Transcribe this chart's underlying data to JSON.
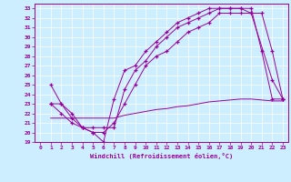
{
  "background_color": "#cceeff",
  "line_color": "#990099",
  "xlim": [
    -0.5,
    23.5
  ],
  "ylim": [
    19,
    33.5
  ],
  "xticks": [
    0,
    1,
    2,
    3,
    4,
    5,
    6,
    7,
    8,
    9,
    10,
    11,
    12,
    13,
    14,
    15,
    16,
    17,
    18,
    19,
    20,
    21,
    22,
    23
  ],
  "yticks": [
    19,
    20,
    21,
    22,
    23,
    24,
    25,
    26,
    27,
    28,
    29,
    30,
    31,
    32,
    33
  ],
  "xlabel": "Windchill (Refroidissement éolien,°C)",
  "line1_x": [
    1,
    2,
    3,
    4,
    5,
    6,
    7,
    8,
    9,
    10,
    11,
    12,
    13,
    14,
    15,
    16,
    17,
    18,
    19,
    20,
    21,
    22,
    23
  ],
  "line1_y": [
    25,
    23,
    21.5,
    20.5,
    20.0,
    19.0,
    23.5,
    26.5,
    27.0,
    28.5,
    29.5,
    30.5,
    31.5,
    32.0,
    32.5,
    33.0,
    33.0,
    33.0,
    33.0,
    33.0,
    28.5,
    23.5,
    23.5
  ],
  "line2_x": [
    1,
    2,
    3,
    4,
    5,
    6,
    7,
    8,
    9,
    10,
    11,
    12,
    13,
    14,
    15,
    16,
    17,
    18,
    19,
    20,
    21,
    22,
    23
  ],
  "line2_y": [
    23.0,
    23.0,
    22.0,
    20.5,
    20.5,
    20.5,
    20.5,
    24.5,
    26.5,
    27.5,
    29.0,
    30.0,
    31.0,
    31.5,
    32.0,
    32.5,
    33.0,
    33.0,
    33.0,
    32.5,
    32.5,
    28.5,
    23.5
  ],
  "line3_x": [
    1,
    2,
    3,
    4,
    5,
    6,
    7,
    8,
    9,
    10,
    11,
    12,
    13,
    14,
    15,
    16,
    17,
    18,
    19,
    20,
    22,
    23
  ],
  "line3_y": [
    23.0,
    22.0,
    21.0,
    20.5,
    20.0,
    20.0,
    21.0,
    23.0,
    25.0,
    27.0,
    28.0,
    28.5,
    29.5,
    30.5,
    31.0,
    31.5,
    32.5,
    32.5,
    32.5,
    32.5,
    25.5,
    23.5
  ],
  "line4_x": [
    1,
    2,
    3,
    4,
    5,
    6,
    7,
    8,
    9,
    10,
    11,
    12,
    13,
    14,
    15,
    16,
    17,
    18,
    19,
    20,
    21,
    22,
    23
  ],
  "line4_y": [
    21.5,
    21.5,
    21.5,
    21.5,
    21.5,
    21.5,
    21.5,
    21.8,
    22.0,
    22.2,
    22.4,
    22.5,
    22.7,
    22.8,
    23.0,
    23.2,
    23.3,
    23.4,
    23.5,
    23.5,
    23.4,
    23.3,
    23.3
  ]
}
